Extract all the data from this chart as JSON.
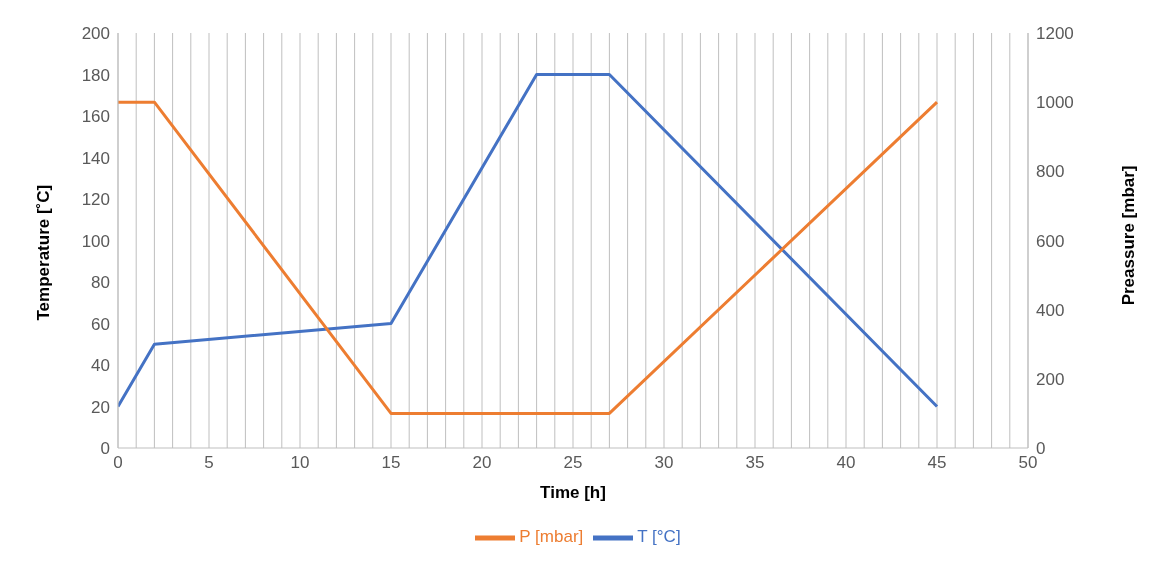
{
  "chart_data": {
    "type": "line",
    "xlabel": "Time [h]",
    "ylabel": "Temperature [˚C]",
    "y2label": "Preassure [mbar]",
    "xlim": [
      0,
      50
    ],
    "xticks": [
      0,
      {
        "value": 1,
        "label": null
      },
      {
        "value": 2,
        "label": null
      },
      {
        "value": 3,
        "label": null
      },
      {
        "value": 4,
        "label": null
      },
      5,
      {
        "value": 6,
        "label": null
      },
      {
        "value": 7,
        "label": null
      },
      {
        "value": 8,
        "label": null
      },
      {
        "value": 9,
        "label": null
      },
      10,
      {
        "value": 11,
        "label": null
      },
      {
        "value": 12,
        "label": null
      },
      {
        "value": 13,
        "label": null
      },
      {
        "value": 14,
        "label": null
      },
      15,
      {
        "value": 16,
        "label": null
      },
      {
        "value": 17,
        "label": null
      },
      {
        "value": 18,
        "label": null
      },
      {
        "value": 19,
        "label": null
      },
      20,
      {
        "value": 21,
        "label": null
      },
      {
        "value": 22,
        "label": null
      },
      {
        "value": 23,
        "label": null
      },
      {
        "value": 24,
        "label": null
      },
      25,
      {
        "value": 26,
        "label": null
      },
      {
        "value": 27,
        "label": null
      },
      {
        "value": 28,
        "label": null
      },
      {
        "value": 29,
        "label": null
      },
      30,
      {
        "value": 31,
        "label": null
      },
      {
        "value": 32,
        "label": null
      },
      {
        "value": 33,
        "label": null
      },
      {
        "value": 34,
        "label": null
      },
      35,
      {
        "value": 36,
        "label": null
      },
      {
        "value": 37,
        "label": null
      },
      {
        "value": 38,
        "label": null
      },
      {
        "value": 39,
        "label": null
      },
      40,
      {
        "value": 41,
        "label": null
      },
      {
        "value": 42,
        "label": null
      },
      {
        "value": 43,
        "label": null
      },
      {
        "value": 44,
        "label": null
      },
      45,
      {
        "value": 46,
        "label": null
      },
      {
        "value": 47,
        "label": null
      },
      {
        "value": 48,
        "label": null
      },
      {
        "value": 49,
        "label": null
      },
      50
    ],
    "ylim": [
      0,
      200
    ],
    "yticks": [
      0,
      20,
      40,
      60,
      80,
      100,
      120,
      140,
      160,
      180,
      200
    ],
    "y2lim": [
      0,
      1200
    ],
    "y2ticks": [
      0,
      200,
      400,
      600,
      800,
      1000,
      1200
    ],
    "grid": "x",
    "legend": "bottom",
    "marker": "none",
    "line_style": "solid",
    "series": [
      {
        "name": "T [°C]",
        "color": "#4472c4",
        "x": [
          0,
          2,
          15,
          23,
          27,
          45
        ],
        "values": [
          20,
          50,
          60,
          180,
          180,
          20
        ]
      },
      {
        "name": "P [mbar]",
        "color": "#ed7d31",
        "axis": "y2",
        "x": [
          0,
          2,
          15,
          27,
          45
        ],
        "values": [
          1000,
          1000,
          100,
          100,
          1000
        ]
      }
    ]
  }
}
